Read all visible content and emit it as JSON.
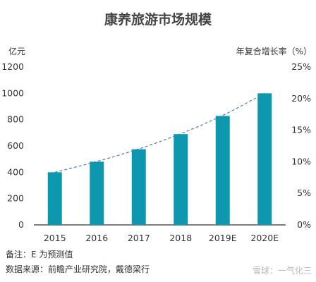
{
  "chart_data": {
    "type": "bar",
    "title": "康养旅游市场规模",
    "y_left_unit": "亿元",
    "y_right_unit": "年复合增长率（%）",
    "categories": [
      "2015",
      "2016",
      "2017",
      "2018",
      "2019E",
      "2020E"
    ],
    "values": [
      400,
      480,
      575,
      690,
      828,
      1000
    ],
    "trendline": [
      400,
      480,
      575,
      690,
      828,
      1000
    ],
    "ylim_left": [
      0,
      1200
    ],
    "ylim_right": [
      0,
      25
    ],
    "left_ticks": [
      "0",
      "200",
      "400",
      "600",
      "800",
      "1000",
      "1200"
    ],
    "right_ticks": [
      "0%",
      "5%",
      "10%",
      "15%",
      "20%",
      "25%"
    ],
    "grid": false,
    "colors": {
      "bar": "#0d98b0",
      "trend": "#4a7bb7",
      "axis": "#333333"
    }
  },
  "notes": {
    "line1": "备注：E 为预测值",
    "line2": "数据来源：前瞻产业研究院，戴德梁行"
  },
  "watermark": "雪球：一气化三"
}
